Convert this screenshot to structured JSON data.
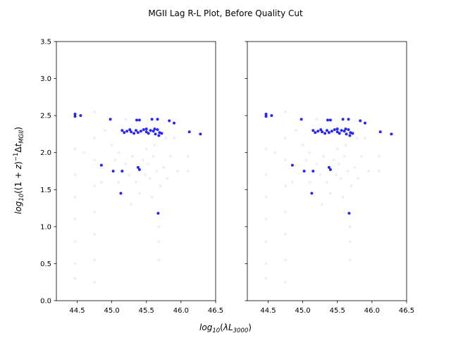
{
  "figure": {
    "title": "MGII Lag R-L Plot, Before Quality Cut"
  },
  "chart_data": {
    "type": "scatter",
    "title": "MGII Lag R-L Plot, Before Quality Cut",
    "xlabel": "log10(λL3000)",
    "ylabel": "log10((1+z)^-1 Δt_MGII)",
    "xlim": [
      44.2,
      46.5
    ],
    "ylim": [
      0.0,
      3.5
    ],
    "xticks": [
      "44.5",
      "45.0",
      "45.5",
      "46.0",
      "46.5"
    ],
    "yticks": [
      "0.0",
      "0.5",
      "1.0",
      "1.5",
      "2.0",
      "2.5",
      "3.0",
      "3.5"
    ],
    "grid": false,
    "point_color": "#0000ff",
    "panels": [
      {
        "name": "left",
        "strong_points": [
          [
            44.47,
            2.52
          ],
          [
            44.47,
            2.49
          ],
          [
            44.55,
            2.5
          ],
          [
            44.98,
            2.45
          ],
          [
            45.15,
            2.3
          ],
          [
            45.18,
            2.27
          ],
          [
            45.22,
            2.29
          ],
          [
            45.28,
            2.28
          ],
          [
            45.32,
            2.26
          ],
          [
            45.35,
            2.3
          ],
          [
            45.38,
            2.27
          ],
          [
            45.42,
            2.29
          ],
          [
            45.46,
            2.31
          ],
          [
            45.5,
            2.28
          ],
          [
            45.53,
            2.26
          ],
          [
            45.56,
            2.3
          ],
          [
            45.6,
            2.29
          ],
          [
            45.63,
            2.25
          ],
          [
            45.66,
            2.31
          ],
          [
            45.69,
            2.27
          ],
          [
            45.72,
            2.26
          ],
          [
            45.36,
            2.44
          ],
          [
            45.4,
            2.44
          ],
          [
            45.58,
            2.45
          ],
          [
            45.66,
            2.45
          ],
          [
            45.83,
            2.43
          ],
          [
            45.9,
            2.4
          ],
          [
            46.12,
            2.28
          ],
          [
            46.28,
            2.25
          ],
          [
            45.13,
            1.45
          ],
          [
            45.15,
            1.75
          ],
          [
            45.38,
            1.8
          ],
          [
            45.4,
            1.77
          ],
          [
            45.67,
            1.18
          ],
          [
            44.85,
            1.83
          ],
          [
            45.02,
            1.75
          ],
          [
            45.62,
            2.32
          ],
          [
            45.68,
            2.23
          ],
          [
            45.5,
            2.32
          ],
          [
            45.26,
            2.31
          ]
        ],
        "faint_points": [
          [
            44.47,
            2.05
          ],
          [
            44.47,
            1.7
          ],
          [
            44.47,
            1.4
          ],
          [
            44.47,
            1.1
          ],
          [
            44.47,
            0.8
          ],
          [
            44.47,
            0.5
          ],
          [
            44.47,
            0.3
          ],
          [
            44.75,
            2.55
          ],
          [
            44.75,
            2.2
          ],
          [
            44.75,
            1.9
          ],
          [
            44.75,
            1.55
          ],
          [
            44.75,
            1.2
          ],
          [
            44.75,
            0.9
          ],
          [
            44.75,
            0.55
          ],
          [
            44.75,
            0.25
          ],
          [
            44.6,
            2.0
          ],
          [
            44.85,
            1.6
          ],
          [
            45.05,
            1.9
          ],
          [
            45.1,
            1.6
          ],
          [
            45.2,
            1.85
          ],
          [
            45.25,
            1.7
          ],
          [
            45.3,
            1.95
          ],
          [
            45.35,
            1.6
          ],
          [
            45.45,
            1.9
          ],
          [
            45.48,
            1.7
          ],
          [
            45.52,
            1.85
          ],
          [
            45.55,
            1.65
          ],
          [
            45.6,
            1.95
          ],
          [
            45.65,
            1.75
          ],
          [
            45.7,
            1.55
          ],
          [
            45.75,
            1.8
          ],
          [
            45.8,
            1.65
          ],
          [
            45.85,
            1.95
          ],
          [
            45.95,
            1.75
          ],
          [
            46.1,
            1.75
          ],
          [
            45.4,
            1.45
          ],
          [
            45.58,
            1.4
          ],
          [
            45.28,
            1.3
          ],
          [
            45.68,
            0.55
          ],
          [
            45.68,
            0.8
          ],
          [
            45.68,
            1.0
          ],
          [
            46.1,
            1.95
          ],
          [
            45.2,
            2.45
          ],
          [
            45.9,
            2.2
          ],
          [
            45.0,
            2.1
          ],
          [
            44.9,
            2.3
          ],
          [
            45.78,
            2.2
          ],
          [
            45.1,
            2.0
          ],
          [
            45.5,
            2.05
          ],
          [
            45.62,
            2.1
          ]
        ]
      },
      {
        "name": "right",
        "strong_points": [
          [
            44.47,
            2.52
          ],
          [
            44.47,
            2.49
          ],
          [
            44.55,
            2.5
          ],
          [
            44.98,
            2.45
          ],
          [
            45.15,
            2.3
          ],
          [
            45.18,
            2.27
          ],
          [
            45.22,
            2.29
          ],
          [
            45.28,
            2.28
          ],
          [
            45.32,
            2.26
          ],
          [
            45.35,
            2.3
          ],
          [
            45.38,
            2.27
          ],
          [
            45.42,
            2.29
          ],
          [
            45.46,
            2.31
          ],
          [
            45.5,
            2.28
          ],
          [
            45.53,
            2.26
          ],
          [
            45.56,
            2.3
          ],
          [
            45.6,
            2.29
          ],
          [
            45.63,
            2.25
          ],
          [
            45.66,
            2.31
          ],
          [
            45.69,
            2.27
          ],
          [
            45.72,
            2.26
          ],
          [
            45.36,
            2.44
          ],
          [
            45.4,
            2.44
          ],
          [
            45.58,
            2.45
          ],
          [
            45.66,
            2.45
          ],
          [
            45.83,
            2.43
          ],
          [
            45.9,
            2.4
          ],
          [
            46.12,
            2.28
          ],
          [
            46.28,
            2.25
          ],
          [
            45.13,
            1.45
          ],
          [
            45.15,
            1.75
          ],
          [
            45.38,
            1.8
          ],
          [
            45.4,
            1.77
          ],
          [
            45.67,
            1.18
          ],
          [
            44.85,
            1.83
          ],
          [
            45.02,
            1.75
          ],
          [
            45.62,
            2.32
          ],
          [
            45.68,
            2.23
          ],
          [
            45.5,
            2.32
          ],
          [
            45.26,
            2.31
          ]
        ],
        "faint_points": [
          [
            44.47,
            2.05
          ],
          [
            44.47,
            1.7
          ],
          [
            44.47,
            1.4
          ],
          [
            44.47,
            1.1
          ],
          [
            44.47,
            0.8
          ],
          [
            44.47,
            0.5
          ],
          [
            44.47,
            0.3
          ],
          [
            44.75,
            2.55
          ],
          [
            44.75,
            2.2
          ],
          [
            44.75,
            1.9
          ],
          [
            44.75,
            1.55
          ],
          [
            44.75,
            1.2
          ],
          [
            44.75,
            0.9
          ],
          [
            44.75,
            0.55
          ],
          [
            44.75,
            0.25
          ],
          [
            44.6,
            2.0
          ],
          [
            44.85,
            1.6
          ],
          [
            45.05,
            1.9
          ],
          [
            45.1,
            1.6
          ],
          [
            45.2,
            1.85
          ],
          [
            45.25,
            1.7
          ],
          [
            45.3,
            1.95
          ],
          [
            45.35,
            1.6
          ],
          [
            45.45,
            1.9
          ],
          [
            45.48,
            1.7
          ],
          [
            45.52,
            1.85
          ],
          [
            45.55,
            1.65
          ],
          [
            45.6,
            1.95
          ],
          [
            45.65,
            1.75
          ],
          [
            45.7,
            1.55
          ],
          [
            45.75,
            1.8
          ],
          [
            45.8,
            1.65
          ],
          [
            45.85,
            1.95
          ],
          [
            45.95,
            1.75
          ],
          [
            46.1,
            1.75
          ],
          [
            45.4,
            1.45
          ],
          [
            45.58,
            1.4
          ],
          [
            45.28,
            1.3
          ],
          [
            45.68,
            0.55
          ],
          [
            45.68,
            0.8
          ],
          [
            45.68,
            1.0
          ],
          [
            46.1,
            1.95
          ],
          [
            45.2,
            2.45
          ],
          [
            45.9,
            2.2
          ],
          [
            45.0,
            2.1
          ],
          [
            44.9,
            2.3
          ],
          [
            45.78,
            2.2
          ],
          [
            45.1,
            2.0
          ],
          [
            45.5,
            2.05
          ],
          [
            45.62,
            2.1
          ]
        ]
      }
    ]
  }
}
